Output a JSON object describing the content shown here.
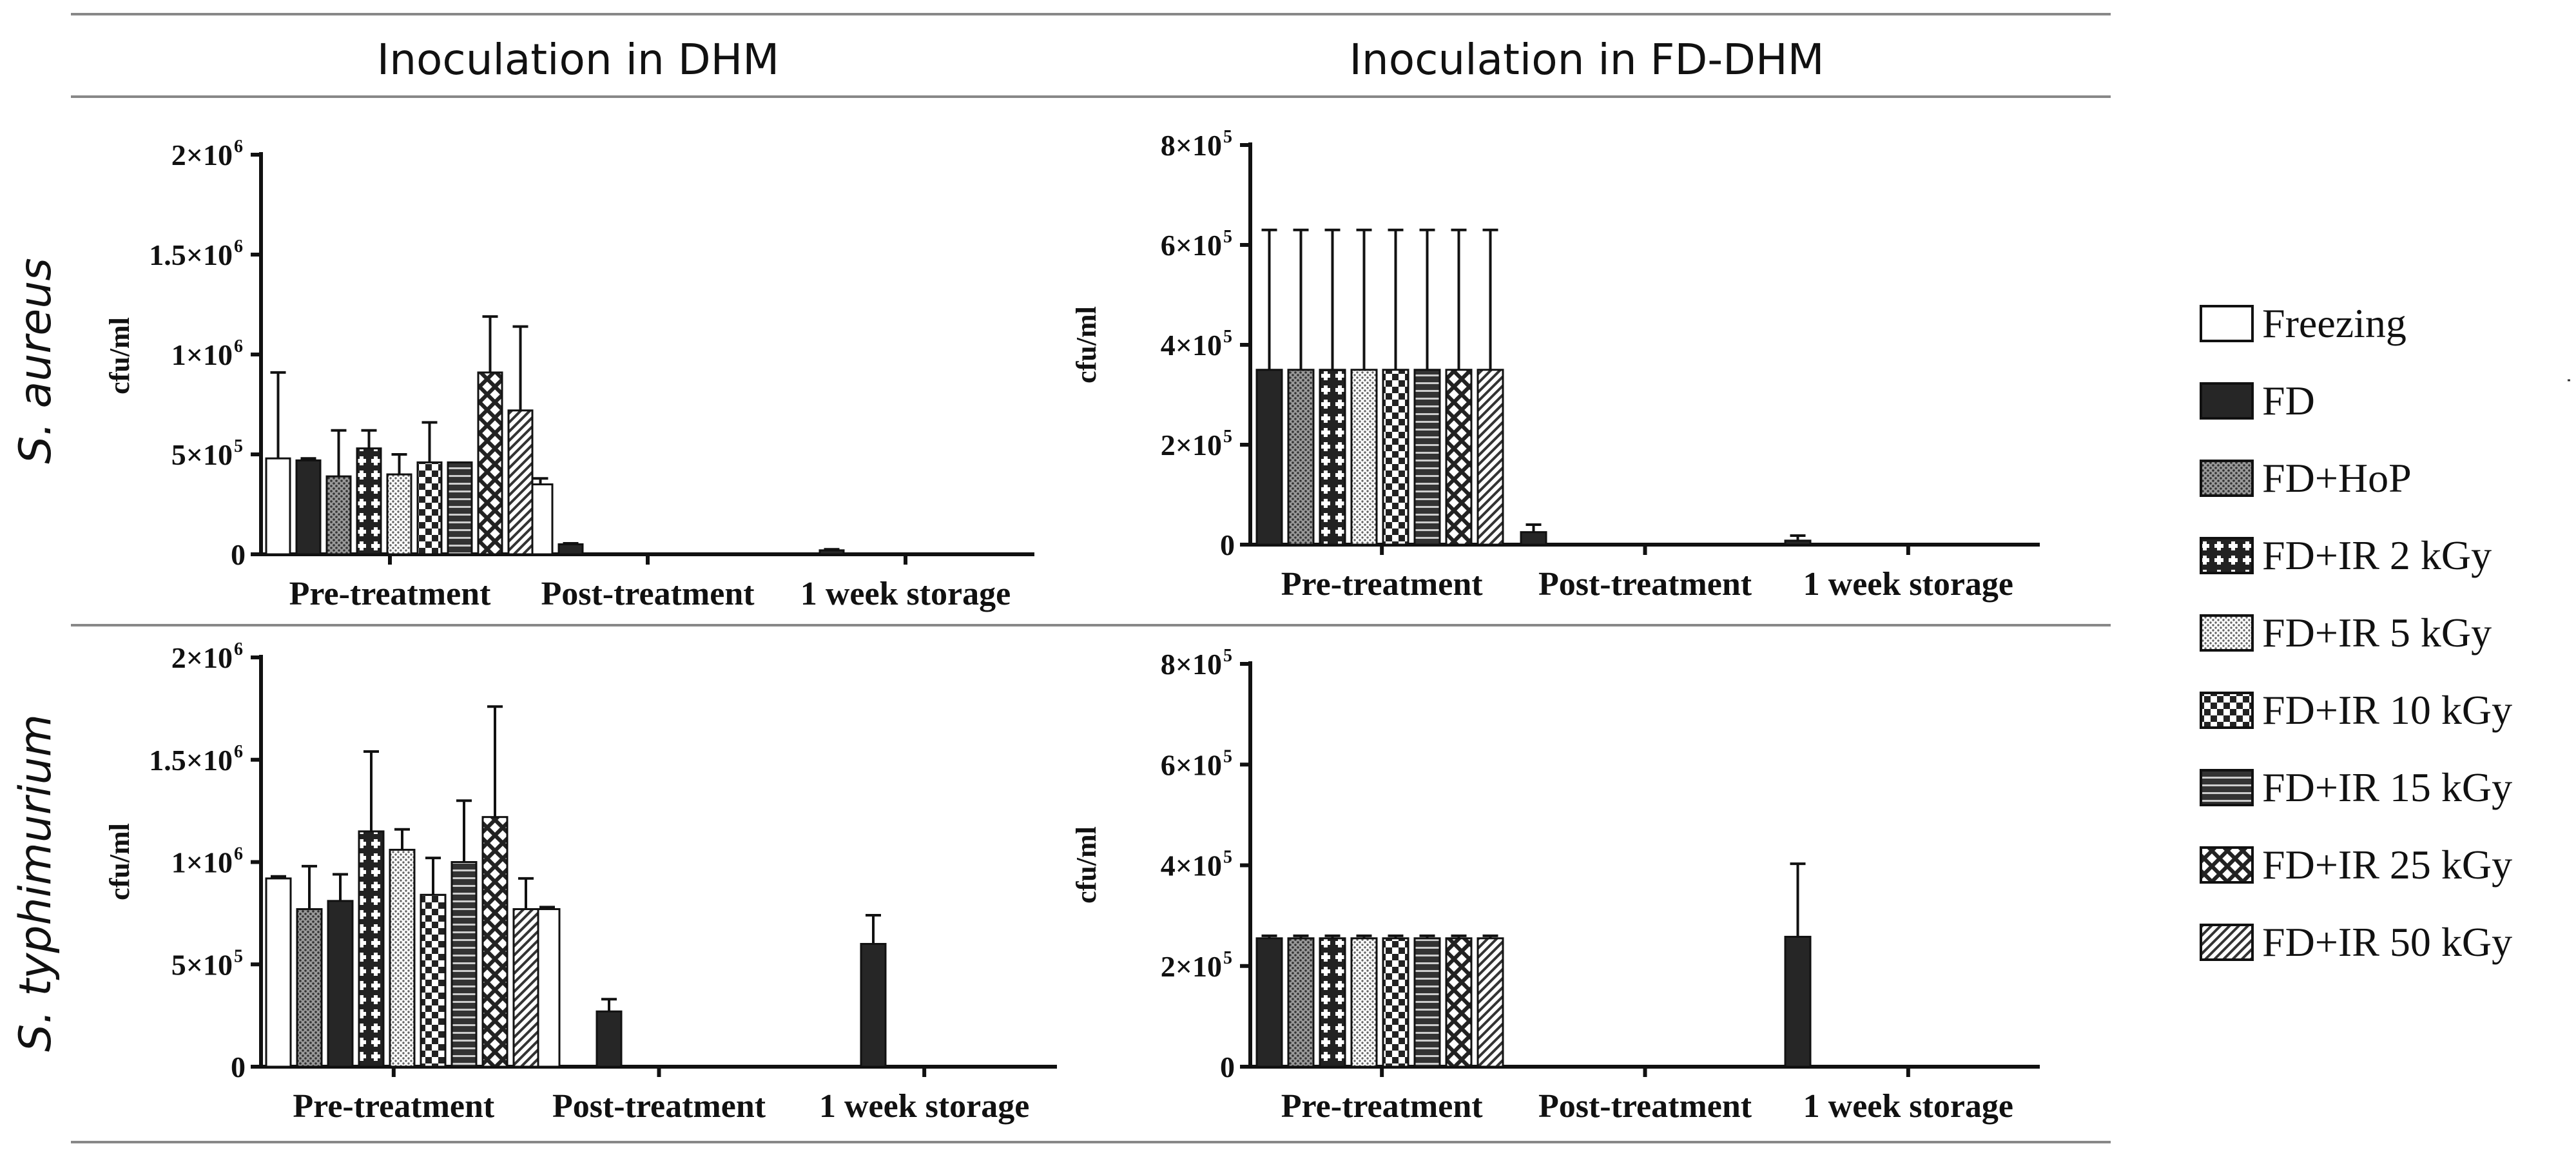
{
  "column_titles": [
    "Inoculation in DHM",
    "Inoculation in FD-DHM"
  ],
  "row_titles": [
    "S. aureus",
    "S. typhimurium"
  ],
  "legend": {
    "entries": [
      {
        "label": "Freezing",
        "pattern": "white"
      },
      {
        "label": "FD",
        "pattern": "solid-dark"
      },
      {
        "label": "FD+HoP",
        "pattern": "dense-dots"
      },
      {
        "label": "FD+IR 2 kGy",
        "pattern": "white-crosses"
      },
      {
        "label": "FD+IR 5 kGy",
        "pattern": "light-dots"
      },
      {
        "label": "FD+IR 10 kGy",
        "pattern": "checker"
      },
      {
        "label": "FD+IR 15 kGy",
        "pattern": "horizontal-stripes"
      },
      {
        "label": "FD+IR 25 kGy",
        "pattern": "diamond-lattice"
      },
      {
        "label": "FD+IR 50 kGy",
        "pattern": "diagonal-hatch"
      }
    ]
  },
  "chart_data": [
    {
      "type": "bar",
      "panel": "S. aureus / Inoculation in DHM",
      "ylabel": "cfu/ml",
      "ylim": [
        0,
        2000000
      ],
      "yticks": [
        {
          "v": 0,
          "base": "0",
          "exp": ""
        },
        {
          "v": 500000,
          "base": "5×10",
          "exp": "5"
        },
        {
          "v": 1000000,
          "base": "1×10",
          "exp": "6"
        },
        {
          "v": 1500000,
          "base": "1.5×10",
          "exp": "6"
        },
        {
          "v": 2000000,
          "base": "2×10",
          "exp": "6"
        }
      ],
      "categories": [
        "Pre-treatment",
        "Post-treatment",
        "1 week storage"
      ],
      "series": [
        {
          "name": "Freezing",
          "values": [
            480000,
            350000,
            0
          ],
          "errors": [
            430000,
            30000,
            0
          ]
        },
        {
          "name": "FD",
          "values": [
            470000,
            50000,
            20000
          ],
          "errors": [
            10000,
            5000,
            5000
          ]
        },
        {
          "name": "FD+HoP",
          "values": [
            390000,
            0,
            0
          ],
          "errors": [
            230000,
            0,
            0
          ]
        },
        {
          "name": "FD+IR 2 kGy",
          "values": [
            530000,
            0,
            0
          ],
          "errors": [
            90000,
            0,
            0
          ]
        },
        {
          "name": "FD+IR 5 kGy",
          "values": [
            400000,
            0,
            0
          ],
          "errors": [
            100000,
            0,
            0
          ]
        },
        {
          "name": "FD+IR 10 kGy",
          "values": [
            460000,
            0,
            0
          ],
          "errors": [
            200000,
            0,
            0
          ]
        },
        {
          "name": "FD+IR 15 kGy",
          "values": [
            460000,
            0,
            0
          ],
          "errors": [
            0,
            0,
            0
          ]
        },
        {
          "name": "FD+IR 25 kGy",
          "values": [
            910000,
            0,
            0
          ],
          "errors": [
            280000,
            0,
            0
          ]
        },
        {
          "name": "FD+IR 50 kGy",
          "values": [
            720000,
            0,
            0
          ],
          "errors": [
            420000,
            0,
            0
          ]
        }
      ]
    },
    {
      "type": "bar",
      "panel": "S. aureus / Inoculation in FD-DHM",
      "ylabel": "cfu/ml",
      "ylim": [
        0,
        800000
      ],
      "yticks": [
        {
          "v": 0,
          "base": "0",
          "exp": ""
        },
        {
          "v": 200000,
          "base": "2×10",
          "exp": "5"
        },
        {
          "v": 400000,
          "base": "4×10",
          "exp": "5"
        },
        {
          "v": 600000,
          "base": "6×10",
          "exp": "5"
        },
        {
          "v": 800000,
          "base": "8×10",
          "exp": "5"
        }
      ],
      "categories": [
        "Pre-treatment",
        "Post-treatment",
        "1 week storage"
      ],
      "series": [
        {
          "name": "FD",
          "values": [
            350000,
            25000,
            8000
          ],
          "errors": [
            280000,
            15000,
            10000
          ]
        },
        {
          "name": "FD+HoP",
          "values": [
            350000,
            0,
            0
          ],
          "errors": [
            280000,
            0,
            0
          ]
        },
        {
          "name": "FD+IR 2 kGy",
          "values": [
            350000,
            0,
            0
          ],
          "errors": [
            280000,
            0,
            0
          ]
        },
        {
          "name": "FD+IR 5 kGy",
          "values": [
            350000,
            0,
            0
          ],
          "errors": [
            280000,
            0,
            0
          ]
        },
        {
          "name": "FD+IR 10 kGy",
          "values": [
            350000,
            0,
            0
          ],
          "errors": [
            280000,
            0,
            0
          ]
        },
        {
          "name": "FD+IR 15 kGy",
          "values": [
            350000,
            0,
            0
          ],
          "errors": [
            280000,
            0,
            0
          ]
        },
        {
          "name": "FD+IR 25 kGy",
          "values": [
            350000,
            0,
            0
          ],
          "errors": [
            280000,
            0,
            0
          ]
        },
        {
          "name": "FD+IR 50 kGy",
          "values": [
            350000,
            0,
            0
          ],
          "errors": [
            280000,
            0,
            0
          ]
        }
      ]
    },
    {
      "type": "bar",
      "panel": "S. typhimurium / Inoculation in DHM",
      "ylabel": "cfu/ml",
      "ylim": [
        0,
        2000000
      ],
      "yticks": [
        {
          "v": 0,
          "base": "0",
          "exp": ""
        },
        {
          "v": 500000,
          "base": "5×10",
          "exp": "5"
        },
        {
          "v": 1000000,
          "base": "1×10",
          "exp": "6"
        },
        {
          "v": 1500000,
          "base": "1.5×10",
          "exp": "6"
        },
        {
          "v": 2000000,
          "base": "2×10",
          "exp": "6"
        }
      ],
      "categories": [
        "Pre-treatment",
        "Post-treatment",
        "1 week storage"
      ],
      "series": [
        {
          "name": "Freezing",
          "values": [
            920000,
            770000,
            0
          ],
          "errors": [
            10000,
            10000,
            0
          ]
        },
        {
          "name": "FD+HoP",
          "values": [
            770000,
            0,
            0
          ],
          "errors": [
            210000,
            0,
            0
          ]
        },
        {
          "name": "FD",
          "values": [
            810000,
            270000,
            600000
          ],
          "errors": [
            130000,
            60000,
            140000
          ]
        },
        {
          "name": "FD+IR 2 kGy",
          "values": [
            1150000,
            0,
            0
          ],
          "errors": [
            390000,
            0,
            0
          ]
        },
        {
          "name": "FD+IR 5 kGy",
          "values": [
            1060000,
            0,
            0
          ],
          "errors": [
            100000,
            0,
            0
          ]
        },
        {
          "name": "FD+IR 10 kGy",
          "values": [
            840000,
            0,
            0
          ],
          "errors": [
            180000,
            0,
            0
          ]
        },
        {
          "name": "FD+IR 15 kGy",
          "values": [
            1000000,
            0,
            0
          ],
          "errors": [
            300000,
            0,
            0
          ]
        },
        {
          "name": "FD+IR 25 kGy",
          "values": [
            1220000,
            0,
            0
          ],
          "errors": [
            540000,
            0,
            0
          ]
        },
        {
          "name": "FD+IR 50 kGy",
          "values": [
            770000,
            0,
            0
          ],
          "errors": [
            150000,
            0,
            0
          ]
        }
      ]
    },
    {
      "type": "bar",
      "panel": "S. typhimurium / Inoculation in FD-DHM",
      "ylabel": "cfu/ml",
      "ylim": [
        0,
        800000
      ],
      "yticks": [
        {
          "v": 0,
          "base": "0",
          "exp": ""
        },
        {
          "v": 200000,
          "base": "2×10",
          "exp": "5"
        },
        {
          "v": 400000,
          "base": "4×10",
          "exp": "5"
        },
        {
          "v": 600000,
          "base": "6×10",
          "exp": "5"
        },
        {
          "v": 800000,
          "base": "8×10",
          "exp": "5"
        }
      ],
      "categories": [
        "Pre-treatment",
        "Post-treatment",
        "1 week storage"
      ],
      "series": [
        {
          "name": "FD",
          "values": [
            255000,
            0,
            258000
          ],
          "errors": [
            5000,
            0,
            145000
          ]
        },
        {
          "name": "FD+HoP",
          "values": [
            255000,
            0,
            0
          ],
          "errors": [
            5000,
            0,
            0
          ]
        },
        {
          "name": "FD+IR 2 kGy",
          "values": [
            255000,
            0,
            0
          ],
          "errors": [
            5000,
            0,
            0
          ]
        },
        {
          "name": "FD+IR 5 kGy",
          "values": [
            255000,
            0,
            0
          ],
          "errors": [
            5000,
            0,
            0
          ]
        },
        {
          "name": "FD+IR 10 kGy",
          "values": [
            255000,
            0,
            0
          ],
          "errors": [
            5000,
            0,
            0
          ]
        },
        {
          "name": "FD+IR 15 kGy",
          "values": [
            255000,
            0,
            0
          ],
          "errors": [
            5000,
            0,
            0
          ]
        },
        {
          "name": "FD+IR 25 kGy",
          "values": [
            255000,
            0,
            0
          ],
          "errors": [
            5000,
            0,
            0
          ]
        },
        {
          "name": "FD+IR 50 kGy",
          "values": [
            255000,
            0,
            0
          ],
          "errors": [
            5000,
            0,
            0
          ]
        }
      ]
    }
  ]
}
